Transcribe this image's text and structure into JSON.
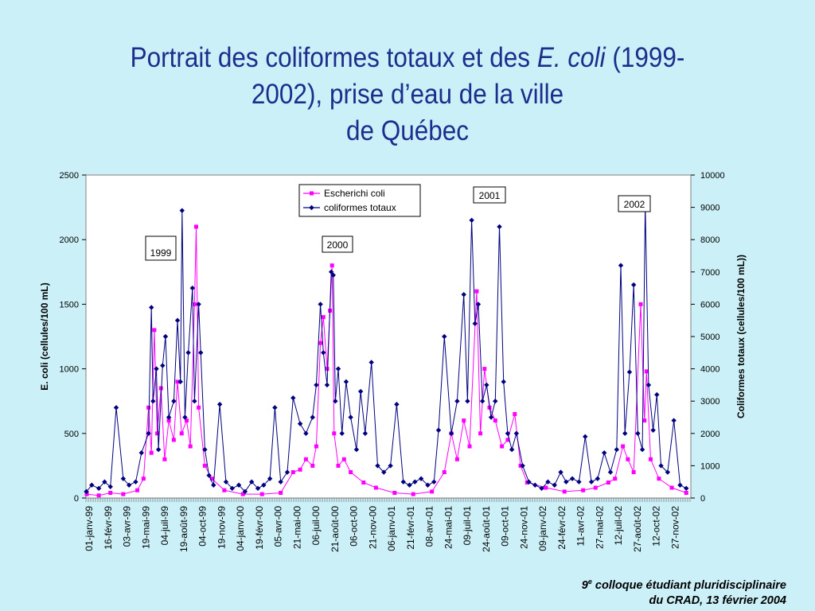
{
  "slide": {
    "title_part1": "Portrait des coliformes totaux et des ",
    "title_italic": "E. coli",
    "title_part2": " (1999-",
    "title_line2": "2002), prise d’eau de la ville",
    "title_line3": "de Québec",
    "footer_ordinal": "9",
    "footer_sup": "e",
    "footer_line1_rest": " colloque étudiant pluridisciplinaire",
    "footer_line2": "du CRAD, 13 février 2004"
  },
  "colors": {
    "background": "#ccf0f8",
    "title": "#1c2e8c",
    "ecoli": "#ff00ff",
    "coliformes": "#000080"
  },
  "chart_data": {
    "type": "line",
    "ylabel": "E. coli (cellules/100 mL)",
    "y2label": "Coliformes totaux (cellules/100 mL))",
    "ylim": [
      0,
      2500
    ],
    "y2lim": [
      0,
      10000
    ],
    "yticks": [
      0,
      500,
      1000,
      1500,
      2000,
      2500
    ],
    "y2ticks": [
      0,
      1000,
      2000,
      3000,
      4000,
      5000,
      6000,
      7000,
      8000,
      9000,
      10000
    ],
    "xlim": [
      "1999-01-01",
      "2002-12-31"
    ],
    "xtick_labels": [
      "01-janv-99",
      "16-févr-99",
      "03-avr-99",
      "19-mai-99",
      "04-juil-99",
      "19-août-99",
      "04-oct-99",
      "19-nov-99",
      "04-janv-00",
      "19-févr-00",
      "05-avr-00",
      "21-mai-00",
      "06-juil-00",
      "21-août-00",
      "06-oct-00",
      "21-nov-00",
      "06-janv-01",
      "21-févr-01",
      "08-avr-01",
      "24-mai-01",
      "09-juil-01",
      "24-août-01",
      "09-oct-01",
      "24-nov-01",
      "09-janv-02",
      "24-févr-02",
      "11-avr-02",
      "27-mai-02",
      "12-juil-02",
      "27-août-02",
      "12-oct-02",
      "27-nov-02"
    ],
    "grid": false,
    "legend_position": "top-center",
    "annotations": [
      "1999",
      "2000",
      "2001",
      "2002"
    ],
    "series": [
      {
        "name": "Escherichi coli",
        "axis": "left",
        "color": "#ff00ff",
        "marker": "square",
        "points": [
          [
            "1999-01-03",
            30
          ],
          [
            "1999-02-01",
            20
          ],
          [
            "1999-03-01",
            40
          ],
          [
            "1999-04-01",
            30
          ],
          [
            "1999-05-05",
            60
          ],
          [
            "1999-05-20",
            150
          ],
          [
            "1999-06-01",
            700
          ],
          [
            "1999-06-08",
            350
          ],
          [
            "1999-06-15",
            1300
          ],
          [
            "1999-06-22",
            500
          ],
          [
            "1999-07-01",
            850
          ],
          [
            "1999-07-10",
            300
          ],
          [
            "1999-07-20",
            600
          ],
          [
            "1999-08-01",
            450
          ],
          [
            "1999-08-10",
            900
          ],
          [
            "1999-08-20",
            500
          ],
          [
            "1999-09-01",
            600
          ],
          [
            "1999-09-10",
            400
          ],
          [
            "1999-09-20",
            1500
          ],
          [
            "1999-09-24",
            2100
          ],
          [
            "1999-09-30",
            700
          ],
          [
            "1999-10-15",
            250
          ],
          [
            "1999-11-01",
            150
          ],
          [
            "1999-12-01",
            60
          ],
          [
            "2000-01-15",
            30
          ],
          [
            "2000-03-01",
            30
          ],
          [
            "2000-04-15",
            40
          ],
          [
            "2000-05-15",
            200
          ],
          [
            "2000-06-01",
            220
          ],
          [
            "2000-06-15",
            300
          ],
          [
            "2000-07-01",
            250
          ],
          [
            "2000-07-10",
            400
          ],
          [
            "2000-07-20",
            1200
          ],
          [
            "2000-07-27",
            1400
          ],
          [
            "2000-08-05",
            1000
          ],
          [
            "2000-08-12",
            1450
          ],
          [
            "2000-08-17",
            1800
          ],
          [
            "2000-08-22",
            500
          ],
          [
            "2000-09-01",
            250
          ],
          [
            "2000-09-15",
            300
          ],
          [
            "2000-10-01",
            200
          ],
          [
            "2000-11-01",
            120
          ],
          [
            "2000-12-01",
            80
          ],
          [
            "2001-01-15",
            40
          ],
          [
            "2001-03-01",
            30
          ],
          [
            "2001-04-15",
            50
          ],
          [
            "2001-05-15",
            200
          ],
          [
            "2001-06-01",
            500
          ],
          [
            "2001-06-15",
            300
          ],
          [
            "2001-07-01",
            600
          ],
          [
            "2001-07-15",
            400
          ],
          [
            "2001-08-01",
            1600
          ],
          [
            "2001-08-10",
            500
          ],
          [
            "2001-08-20",
            1000
          ],
          [
            "2001-09-01",
            700
          ],
          [
            "2001-09-15",
            600
          ],
          [
            "2001-10-01",
            400
          ],
          [
            "2001-10-15",
            450
          ],
          [
            "2001-11-01",
            650
          ],
          [
            "2001-11-15",
            250
          ],
          [
            "2001-12-01",
            120
          ],
          [
            "2002-01-15",
            80
          ],
          [
            "2002-03-01",
            50
          ],
          [
            "2002-04-15",
            60
          ],
          [
            "2002-05-15",
            80
          ],
          [
            "2002-06-15",
            120
          ],
          [
            "2002-07-01",
            150
          ],
          [
            "2002-07-20",
            400
          ],
          [
            "2002-08-01",
            300
          ],
          [
            "2002-08-15",
            200
          ],
          [
            "2002-09-01",
            1500
          ],
          [
            "2002-09-10",
            600
          ],
          [
            "2002-09-15",
            980
          ],
          [
            "2002-09-25",
            300
          ],
          [
            "2002-10-15",
            150
          ],
          [
            "2002-11-15",
            80
          ],
          [
            "2002-12-20",
            40
          ]
        ]
      },
      {
        "name": "coliformes totaux",
        "axis": "right",
        "color": "#000080",
        "marker": "diamond",
        "points": [
          [
            "1999-01-02",
            200
          ],
          [
            "1999-01-15",
            400
          ],
          [
            "1999-02-01",
            300
          ],
          [
            "1999-02-15",
            500
          ],
          [
            "1999-03-01",
            350
          ],
          [
            "1999-03-15",
            2800
          ],
          [
            "1999-04-01",
            600
          ],
          [
            "1999-04-15",
            400
          ],
          [
            "1999-05-01",
            500
          ],
          [
            "1999-05-15",
            1400
          ],
          [
            "1999-06-01",
            2000
          ],
          [
            "1999-06-08",
            5900
          ],
          [
            "1999-06-12",
            3000
          ],
          [
            "1999-06-20",
            4000
          ],
          [
            "1999-06-25",
            1500
          ],
          [
            "1999-07-05",
            4100
          ],
          [
            "1999-07-12",
            5000
          ],
          [
            "1999-07-20",
            2500
          ],
          [
            "1999-08-01",
            3000
          ],
          [
            "1999-08-10",
            5500
          ],
          [
            "1999-08-17",
            3600
          ],
          [
            "1999-08-21",
            8900
          ],
          [
            "1999-08-28",
            2500
          ],
          [
            "1999-09-05",
            4500
          ],
          [
            "1999-09-15",
            6500
          ],
          [
            "1999-09-20",
            3000
          ],
          [
            "1999-09-30",
            6000
          ],
          [
            "1999-10-05",
            4500
          ],
          [
            "1999-10-15",
            1500
          ],
          [
            "1999-10-25",
            700
          ],
          [
            "1999-11-05",
            400
          ],
          [
            "1999-11-20",
            2900
          ],
          [
            "1999-12-05",
            500
          ],
          [
            "1999-12-20",
            300
          ],
          [
            "2000-01-05",
            400
          ],
          [
            "2000-01-20",
            200
          ],
          [
            "2000-02-05",
            500
          ],
          [
            "2000-02-20",
            300
          ],
          [
            "2000-03-05",
            400
          ],
          [
            "2000-03-20",
            600
          ],
          [
            "2000-04-01",
            2800
          ],
          [
            "2000-04-15",
            500
          ],
          [
            "2000-05-01",
            800
          ],
          [
            "2000-05-15",
            3100
          ],
          [
            "2000-06-01",
            2300
          ],
          [
            "2000-06-15",
            2000
          ],
          [
            "2000-07-01",
            2500
          ],
          [
            "2000-07-10",
            3500
          ],
          [
            "2000-07-20",
            6000
          ],
          [
            "2000-07-27",
            4500
          ],
          [
            "2000-08-05",
            3500
          ],
          [
            "2000-08-15",
            7000
          ],
          [
            "2000-08-20",
            6900
          ],
          [
            "2000-08-25",
            3000
          ],
          [
            "2000-09-01",
            4000
          ],
          [
            "2000-09-10",
            2000
          ],
          [
            "2000-09-20",
            3600
          ],
          [
            "2000-10-01",
            2500
          ],
          [
            "2000-10-15",
            1500
          ],
          [
            "2000-10-25",
            3300
          ],
          [
            "2000-11-05",
            2000
          ],
          [
            "2000-11-20",
            4200
          ],
          [
            "2000-12-05",
            1000
          ],
          [
            "2000-12-20",
            800
          ],
          [
            "2001-01-05",
            1000
          ],
          [
            "2001-01-20",
            2900
          ],
          [
            "2001-02-05",
            500
          ],
          [
            "2001-02-20",
            400
          ],
          [
            "2001-03-05",
            500
          ],
          [
            "2001-03-20",
            600
          ],
          [
            "2001-04-05",
            400
          ],
          [
            "2001-04-20",
            500
          ],
          [
            "2001-05-01",
            2100
          ],
          [
            "2001-05-15",
            5000
          ],
          [
            "2001-06-01",
            2000
          ],
          [
            "2001-06-15",
            3000
          ],
          [
            "2001-07-01",
            6300
          ],
          [
            "2001-07-10",
            3000
          ],
          [
            "2001-07-20",
            8600
          ],
          [
            "2001-07-28",
            5400
          ],
          [
            "2001-08-05",
            6000
          ],
          [
            "2001-08-15",
            3000
          ],
          [
            "2001-08-25",
            3500
          ],
          [
            "2001-09-05",
            2500
          ],
          [
            "2001-09-15",
            3000
          ],
          [
            "2001-09-25",
            8400
          ],
          [
            "2001-10-05",
            3600
          ],
          [
            "2001-10-15",
            2000
          ],
          [
            "2001-10-25",
            1500
          ],
          [
            "2001-11-05",
            2000
          ],
          [
            "2001-11-20",
            1000
          ],
          [
            "2001-12-05",
            500
          ],
          [
            "2001-12-20",
            400
          ],
          [
            "2002-01-05",
            300
          ],
          [
            "2002-01-20",
            500
          ],
          [
            "2002-02-05",
            400
          ],
          [
            "2002-02-20",
            800
          ],
          [
            "2002-03-05",
            500
          ],
          [
            "2002-03-20",
            600
          ],
          [
            "2002-04-05",
            500
          ],
          [
            "2002-04-20",
            1900
          ],
          [
            "2002-05-05",
            500
          ],
          [
            "2002-05-20",
            600
          ],
          [
            "2002-06-05",
            1400
          ],
          [
            "2002-06-20",
            800
          ],
          [
            "2002-07-05",
            1500
          ],
          [
            "2002-07-15",
            7200
          ],
          [
            "2002-07-25",
            2000
          ],
          [
            "2002-08-05",
            3900
          ],
          [
            "2002-08-15",
            6600
          ],
          [
            "2002-08-25",
            2000
          ],
          [
            "2002-09-05",
            1500
          ],
          [
            "2002-09-12",
            9100
          ],
          [
            "2002-09-20",
            3500
          ],
          [
            "2002-10-01",
            2100
          ],
          [
            "2002-10-10",
            3200
          ],
          [
            "2002-10-20",
            1000
          ],
          [
            "2002-11-05",
            800
          ],
          [
            "2002-11-20",
            2400
          ],
          [
            "2002-12-05",
            400
          ],
          [
            "2002-12-20",
            300
          ]
        ]
      }
    ]
  }
}
